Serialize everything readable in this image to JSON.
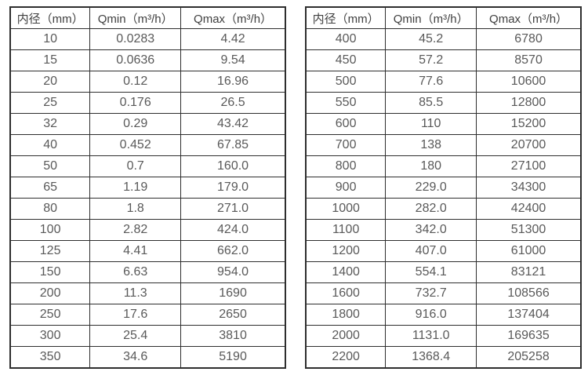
{
  "colors": {
    "background": "#ffffff",
    "border": "#2e2e2e",
    "header_text": "#404040",
    "cell_text": "#595959"
  },
  "tables": [
    {
      "name": "small-diameters",
      "headers": [
        "内径（mm）",
        "Qmin（m³/h）",
        "Qmax（m³/h）"
      ],
      "rows": [
        [
          "10",
          "0.0283",
          "4.42"
        ],
        [
          "15",
          "0.0636",
          "9.54"
        ],
        [
          "20",
          "0.12",
          "16.96"
        ],
        [
          "25",
          "0.176",
          "26.5"
        ],
        [
          "32",
          "0.29",
          "43.42"
        ],
        [
          "40",
          "0.452",
          "67.85"
        ],
        [
          "50",
          "0.7",
          "160.0"
        ],
        [
          "65",
          "1.19",
          "179.0"
        ],
        [
          "80",
          "1.8",
          "271.0"
        ],
        [
          "100",
          "2.82",
          "424.0"
        ],
        [
          "125",
          "4.41",
          "662.0"
        ],
        [
          "150",
          "6.63",
          "954.0"
        ],
        [
          "200",
          "11.3",
          "1690"
        ],
        [
          "250",
          "17.6",
          "2650"
        ],
        [
          "300",
          "25.4",
          "3810"
        ],
        [
          "350",
          "34.6",
          "5190"
        ]
      ]
    },
    {
      "name": "large-diameters",
      "headers": [
        "内径（mm）",
        "Qmin（m³/h）",
        "Qmax（m³/h）"
      ],
      "rows": [
        [
          "400",
          "45.2",
          "6780"
        ],
        [
          "450",
          "57.2",
          "8570"
        ],
        [
          "500",
          "77.6",
          "10600"
        ],
        [
          "550",
          "85.5",
          "12800"
        ],
        [
          "600",
          "110",
          "15200"
        ],
        [
          "700",
          "138",
          "20700"
        ],
        [
          "800",
          "180",
          "27100"
        ],
        [
          "900",
          "229.0",
          "34300"
        ],
        [
          "1000",
          "282.0",
          "42400"
        ],
        [
          "1100",
          "342.0",
          "51300"
        ],
        [
          "1200",
          "407.0",
          "61000"
        ],
        [
          "1400",
          "554.1",
          "83121"
        ],
        [
          "1600",
          "732.7",
          "108566"
        ],
        [
          "1800",
          "916.0",
          "137404"
        ],
        [
          "2000",
          "1131.0",
          "169635"
        ],
        [
          "2200",
          "1368.4",
          "205258"
        ]
      ]
    }
  ]
}
